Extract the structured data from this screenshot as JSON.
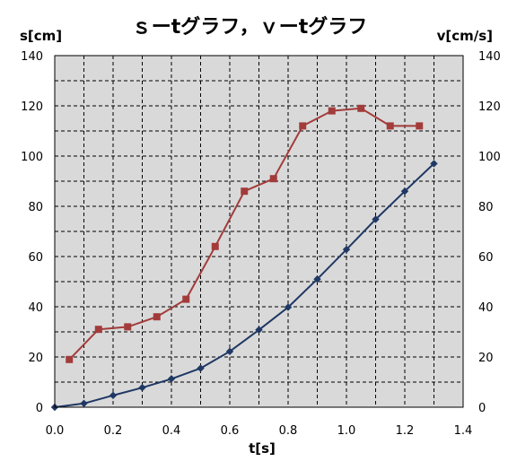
{
  "chart_data": {
    "type": "line",
    "title": "ｓーtグラフ，ｖーtグラフ",
    "xlabel": "t[s]",
    "ylabel_left": "s[cm]",
    "ylabel_right": "v[cm/s]",
    "xlim": [
      0,
      1.4
    ],
    "ylim": [
      0,
      140
    ],
    "x_ticks": [
      "0.0",
      "0.2",
      "0.4",
      "0.6",
      "0.8",
      "1.0",
      "1.2",
      "1.4"
    ],
    "y_ticks_left": [
      "0",
      "20",
      "40",
      "60",
      "80",
      "100",
      "120",
      "140"
    ],
    "y_ticks_right": [
      "0",
      "20",
      "40",
      "60",
      "80",
      "100",
      "120",
      "140"
    ],
    "grid": true,
    "plot_background": "#d9d9d9",
    "series": [
      {
        "axis": "left",
        "color": "#1f3864",
        "marker": "diamond",
        "points": [
          [
            0.0,
            0
          ],
          [
            0.1,
            1.5
          ],
          [
            0.2,
            4.7
          ],
          [
            0.3,
            7.8
          ],
          [
            0.4,
            11.3
          ],
          [
            0.5,
            15.5
          ],
          [
            0.6,
            22.2
          ],
          [
            0.7,
            30.8
          ],
          [
            0.8,
            39.8
          ],
          [
            0.9,
            51.0
          ],
          [
            1.0,
            62.8
          ],
          [
            1.1,
            74.8
          ],
          [
            1.2,
            86.0
          ],
          [
            1.3,
            97.0
          ]
        ]
      },
      {
        "axis": "right",
        "color": "#a33b3b",
        "marker": "square",
        "points": [
          [
            0.05,
            19.0
          ],
          [
            0.15,
            31.0
          ],
          [
            0.25,
            32.0
          ],
          [
            0.35,
            36.0
          ],
          [
            0.45,
            43.0
          ],
          [
            0.55,
            64.0
          ],
          [
            0.65,
            86.0
          ],
          [
            0.75,
            91.0
          ],
          [
            0.85,
            112.0
          ],
          [
            0.95,
            118.0
          ],
          [
            1.05,
            119.0
          ],
          [
            1.15,
            112.0
          ],
          [
            1.25,
            112.0
          ]
        ]
      }
    ]
  }
}
